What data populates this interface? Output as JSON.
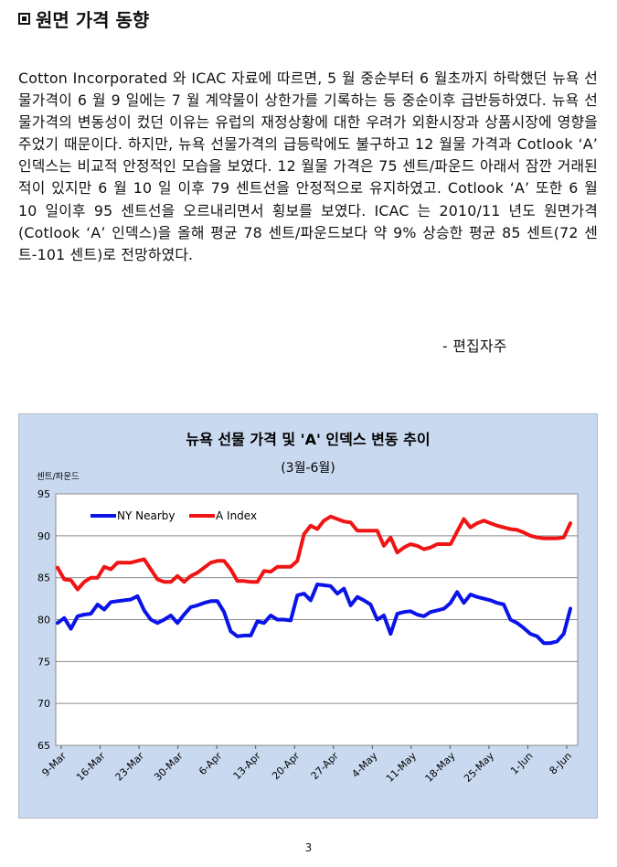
{
  "heading": {
    "icon": "square-bullet-icon",
    "text": "원면 가격 동향"
  },
  "paragraph": "Cotton Incorporated 와 ICAC 자료에 따르면, 5 월 중순부터 6 월초까지 하락했던 뉴욕 선물가격이 6 월 9 일에는 7 월 계약물이 상한가를 기록하는 등 중순이후 급반등하였다. 뉴욕 선물가격의 변동성이 컸던 이유는 유럽의 재정상황에 대한 우려가 외환시장과 상품시장에 영향을 주었기 때문이다. 하지만, 뉴욕 선물가격의 급등락에도 불구하고 12 월물 가격과 Cotlook ‘A’ 인덱스는 비교적 안정적인 모습을 보였다. 12 월물 가격은 75 센트/파운드 아래서 잠깐 거래된 적이 있지만 6 월 10 일 이후 79 센트선을 안정적으로 유지하였고. Cotlook ‘A’ 또한 6 월 10 일이후 95 센트선을 오르내리면서 횡보를 보였다. ICAC 는 2010/11 년도 원면가격(Cotlook ‘A’ 인덱스)을 올해 평균 78 센트/파운드보다 약 9% 상승한 평균 85 센트(72 센트-101 센트)로 전망하였다.",
  "editor_note": "- 편집자주",
  "page_number": "3",
  "colors": {
    "chart_bg": "#c9daf0",
    "ny": "#0a14e8",
    "a_index": "#f01414"
  },
  "chart_data": {
    "type": "line",
    "title": "뉴욕 선물 가격 및 'A' 인덱스 변동 추이",
    "subtitle": "(3월-6월)",
    "ylabel": "센트/파운드",
    "ylim": [
      65,
      95
    ],
    "yticks": [
      65,
      70,
      75,
      80,
      85,
      90,
      95
    ],
    "xticks": [
      "9-Mar",
      "16-Mar",
      "23-Mar",
      "30-Mar",
      "6-Apr",
      "13-Apr",
      "20-Apr",
      "27-Apr",
      "4-May",
      "11-May",
      "18-May",
      "25-May",
      "1-Jun",
      "8-Jun"
    ],
    "grid": true,
    "legend": "top-left",
    "series": [
      {
        "name": "NY Nearby",
        "color": "#0a14e8",
        "values": [
          79.6,
          80.2,
          78.9,
          80.4,
          80.6,
          80.7,
          81.8,
          81.2,
          82.1,
          82.2,
          82.3,
          82.4,
          82.8,
          81.1,
          80.0,
          79.6,
          80.0,
          80.5,
          79.6,
          80.6,
          81.5,
          81.7,
          82.0,
          82.2,
          82.2,
          80.9,
          78.6,
          78.0,
          78.1,
          78.1,
          79.8,
          79.6,
          80.5,
          80.0,
          80.0,
          79.9,
          82.9,
          83.1,
          82.3,
          84.2,
          84.1,
          84.0,
          83.1,
          83.7,
          81.7,
          82.7,
          82.3,
          81.8,
          80.0,
          80.5,
          78.3,
          80.7,
          80.9,
          81.0,
          80.6,
          80.4,
          80.9,
          81.1,
          81.3,
          82.0,
          83.3,
          82.0,
          83.0,
          82.7,
          82.5,
          82.3,
          82.0,
          81.8,
          80.0,
          79.6,
          79.0,
          78.3,
          78.0,
          77.2,
          77.2,
          77.4,
          78.3,
          81.3
        ]
      },
      {
        "name": "A Index",
        "color": "#f01414",
        "values": [
          86.2,
          84.8,
          84.7,
          83.6,
          84.5,
          85.0,
          85.0,
          86.3,
          86.0,
          86.8,
          86.8,
          86.8,
          87.0,
          87.2,
          86.0,
          84.8,
          84.5,
          84.5,
          85.2,
          84.5,
          85.2,
          85.6,
          86.2,
          86.8,
          87.0,
          87.0,
          86.0,
          84.6,
          84.6,
          84.5,
          84.5,
          85.8,
          85.7,
          86.3,
          86.3,
          86.3,
          87.0,
          90.2,
          91.2,
          90.8,
          91.8,
          92.3,
          92.0,
          91.7,
          91.6,
          90.6,
          90.6,
          90.6,
          90.6,
          88.8,
          89.8,
          88.0,
          88.6,
          89.0,
          88.8,
          88.4,
          88.6,
          89.0,
          89.0,
          89.0,
          90.5,
          92.0,
          91.0,
          91.5,
          91.8,
          91.5,
          91.2,
          91.0,
          90.8,
          90.7,
          90.4,
          90.0,
          89.8,
          89.7,
          89.7,
          89.7,
          89.8,
          91.5
        ]
      }
    ]
  }
}
